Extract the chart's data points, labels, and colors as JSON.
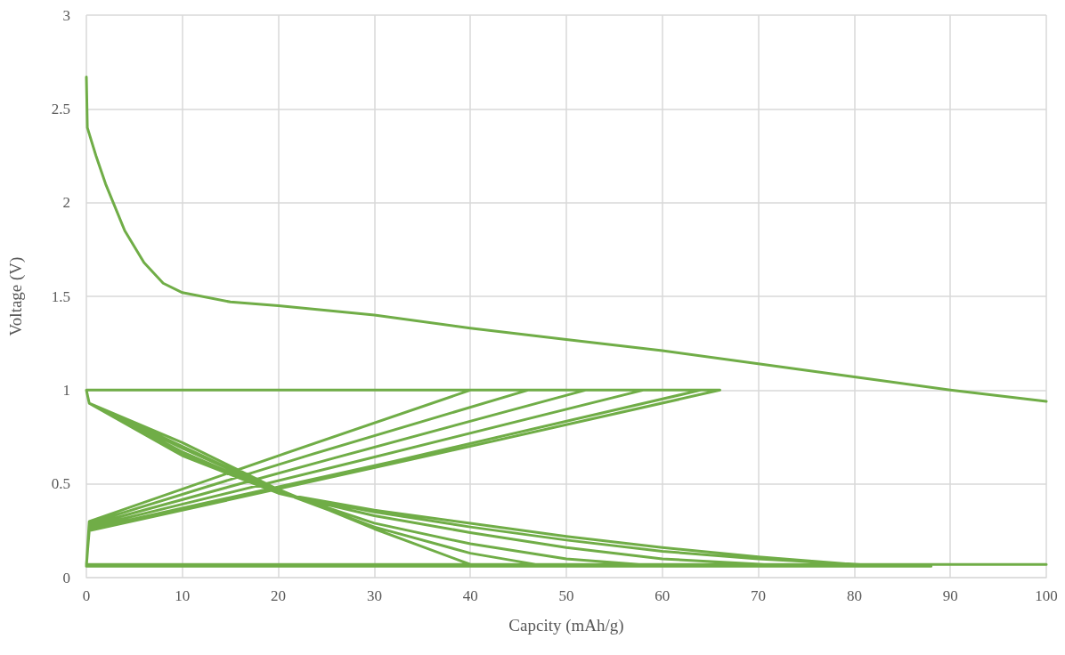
{
  "chart_data": {
    "type": "line",
    "xlabel": "Capcity (mAh/g)",
    "ylabel": "Voltage (V)",
    "xlim": [
      0,
      100
    ],
    "xticks": [
      0,
      10,
      20,
      30,
      40,
      50,
      60,
      70,
      80,
      90,
      100
    ],
    "ylim": [
      0,
      3
    ],
    "yticks": [
      0,
      0.5,
      1,
      1.5,
      2,
      2.5,
      3
    ],
    "grid": true,
    "marker": "none",
    "line_style": "solid",
    "series": [
      {
        "color": "#70ad47",
        "x": [
          0,
          0.1,
          1,
          2,
          4,
          6,
          8,
          10,
          15,
          20,
          30,
          40,
          50,
          60,
          70,
          80,
          90,
          100
        ],
        "values": [
          2.67,
          2.4,
          2.25,
          2.1,
          1.85,
          1.68,
          1.57,
          1.52,
          1.47,
          1.45,
          1.4,
          1.33,
          1.27,
          1.21,
          1.14,
          1.07,
          1.0,
          0.94
        ]
      },
      {
        "color": "#70ad47",
        "x": [
          100,
          0,
          0.3,
          33,
          66,
          0,
          0.3,
          10,
          20,
          30,
          40,
          50,
          60,
          70,
          80,
          88,
          0,
          0.3,
          32,
          64,
          0,
          0.3,
          10,
          20,
          30,
          40,
          50,
          60,
          70,
          84,
          0,
          0.3,
          29,
          58,
          0,
          0.3,
          10,
          20,
          30,
          40,
          50,
          60,
          74,
          0,
          0.3,
          26,
          52,
          0,
          0.3,
          10,
          20,
          30,
          40,
          50,
          60,
          0,
          0.3,
          23,
          46,
          0,
          0.3,
          10,
          20,
          30,
          40,
          48,
          0,
          0.3,
          20,
          40,
          0,
          0.3,
          10,
          20,
          30,
          40
        ],
        "values": [
          0.07,
          0.07,
          0.25,
          0.62,
          1.0,
          1.0,
          0.93,
          0.65,
          0.45,
          0.36,
          0.29,
          0.22,
          0.16,
          0.11,
          0.07,
          0.06,
          0.06,
          0.26,
          0.62,
          1.0,
          1.0,
          0.93,
          0.66,
          0.45,
          0.35,
          0.27,
          0.2,
          0.14,
          0.1,
          0.06,
          0.06,
          0.27,
          0.63,
          1.0,
          1.0,
          0.93,
          0.67,
          0.45,
          0.33,
          0.24,
          0.16,
          0.1,
          0.06,
          0.06,
          0.28,
          0.64,
          1.0,
          1.0,
          0.93,
          0.69,
          0.46,
          0.29,
          0.18,
          0.1,
          0.06,
          0.06,
          0.29,
          0.65,
          1.0,
          1.0,
          0.93,
          0.7,
          0.46,
          0.27,
          0.13,
          0.06,
          0.06,
          0.3,
          0.65,
          1.0,
          1.0,
          0.93,
          0.72,
          0.47,
          0.26,
          0.07
        ]
      }
    ]
  }
}
